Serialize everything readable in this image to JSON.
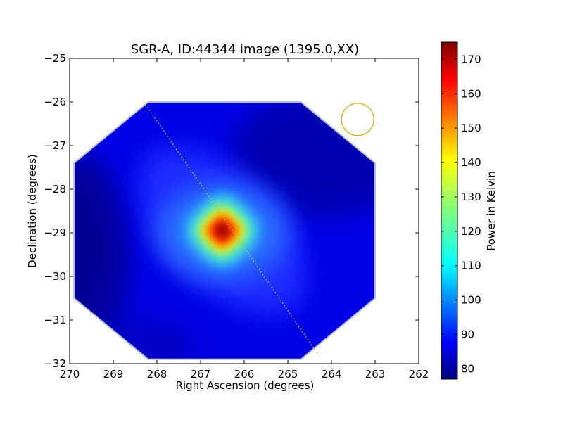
{
  "chart_data": {
    "type": "heatmap",
    "title": "SGR-A, ID:44344 image (1395.0,XX)",
    "xlabel": "Right Ascension (degrees)",
    "ylabel": "Declination (degrees)",
    "xlim": [
      270,
      262
    ],
    "ylim": [
      -32,
      -25
    ],
    "xticks": [
      270,
      269,
      268,
      267,
      266,
      265,
      264,
      263,
      262
    ],
    "yticks": [
      -25,
      -26,
      -27,
      -28,
      -29,
      -30,
      -31,
      -32
    ],
    "xtick_labels": [
      "270",
      "269",
      "268",
      "267",
      "266",
      "265",
      "264",
      "263",
      "262"
    ],
    "ytick_labels": [
      "−25",
      "−26",
      "−27",
      "−28",
      "−29",
      "−30",
      "−31",
      "−32"
    ],
    "colormap": "jet",
    "colorbar": {
      "label": "Power in Kelvin",
      "range": [
        77,
        175
      ],
      "ticks": [
        80,
        90,
        100,
        110,
        120,
        130,
        140,
        150,
        160,
        170
      ],
      "tick_labels": [
        "80",
        "90",
        "100",
        "110",
        "120",
        "130",
        "140",
        "150",
        "160",
        "170"
      ]
    },
    "image_footprint": {
      "shape": "octagon",
      "vertices": [
        [
          268.2,
          -26.0
        ],
        [
          264.7,
          -26.0
        ],
        [
          263.0,
          -27.4
        ],
        [
          263.0,
          -30.5
        ],
        [
          264.7,
          -31.9
        ],
        [
          268.2,
          -31.9
        ],
        [
          269.9,
          -30.5
        ],
        [
          269.9,
          -27.4
        ]
      ]
    },
    "peak": {
      "ra": 266.5,
      "dec": -28.95,
      "value": 175
    },
    "background_min": {
      "ra": 269.8,
      "dec": -29.6,
      "value": 77
    },
    "galactic_plane_line": {
      "style": "dotted",
      "color": "#c8c800",
      "from": [
        268.3,
        -26.0
      ],
      "to": [
        264.3,
        -31.8
      ]
    },
    "beam": {
      "shape": "circle",
      "ra": 263.4,
      "dec": -26.4,
      "radius_deg": 0.37,
      "color": "#c8b400"
    },
    "grid": false,
    "legend": "none"
  }
}
